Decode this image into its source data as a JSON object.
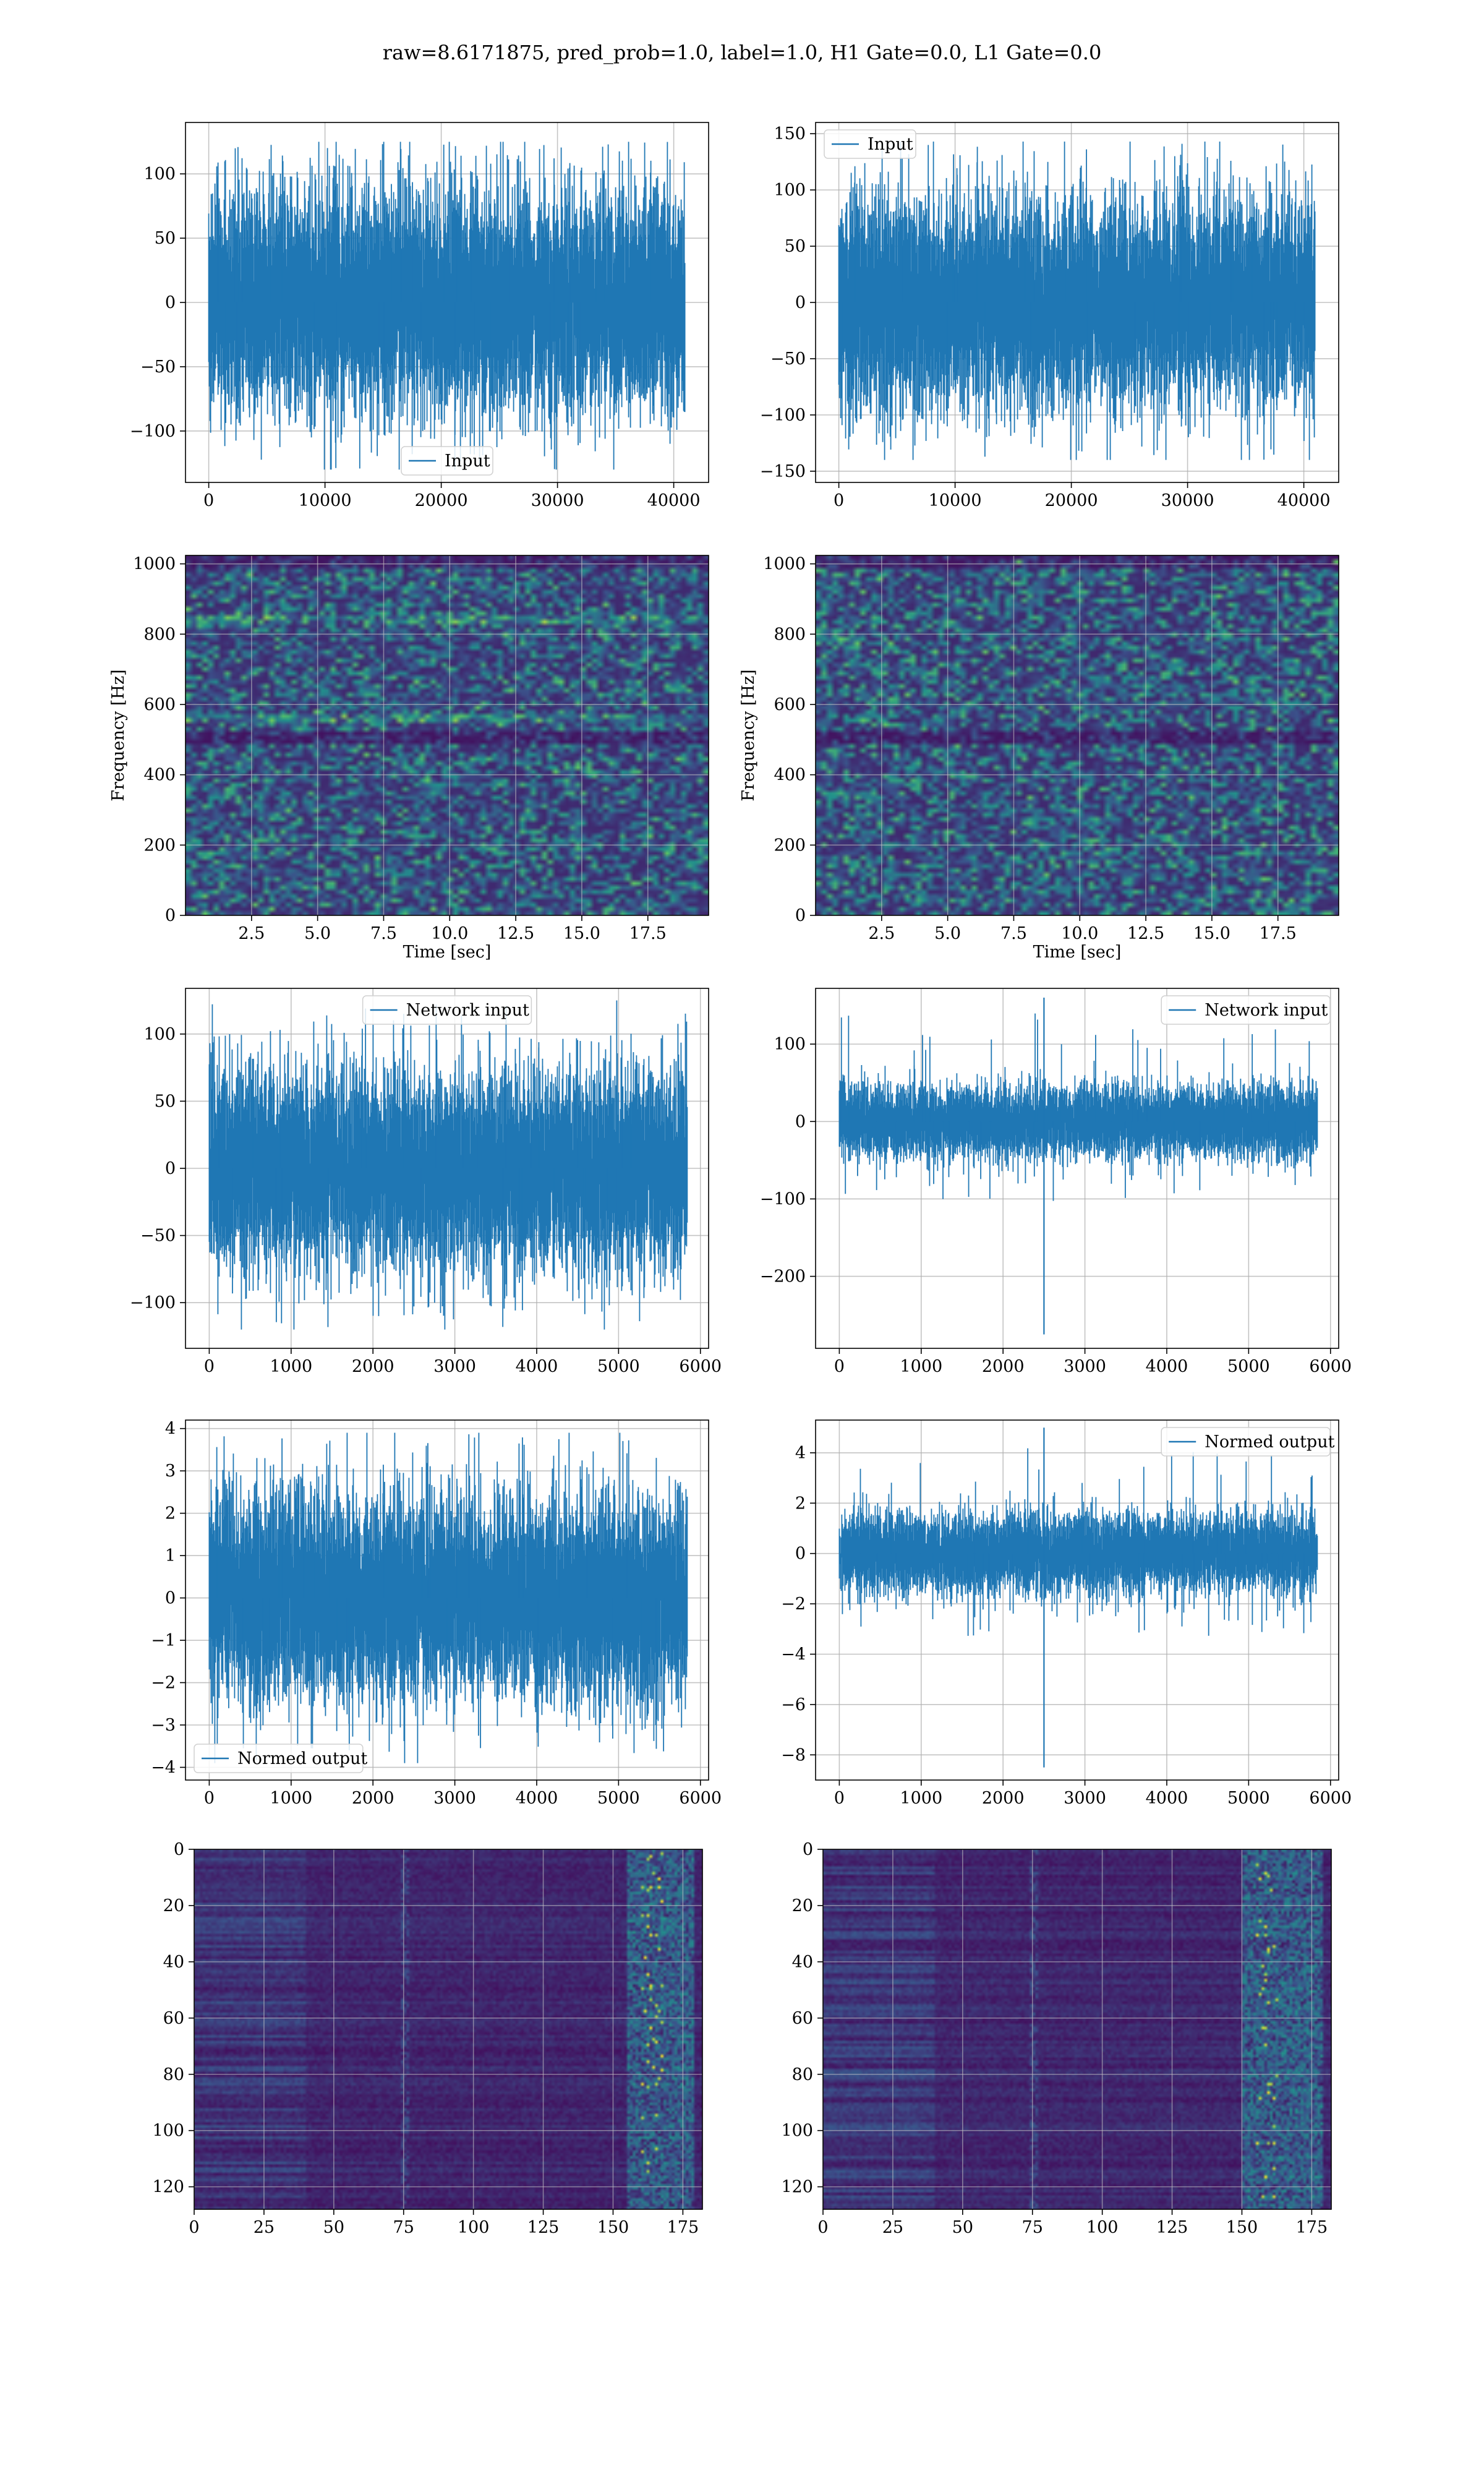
{
  "figure": {
    "title": "raw=8.6171875, pred_prob=1.0, label=1.0, H1 Gate=0.0, L1 Gate=0.0"
  },
  "colors": {
    "line": "#1f77b4",
    "grid": "#b0b0b0",
    "viridis_low": "#440154",
    "viridis_mid": "#21918c",
    "viridis_high": "#fde725"
  },
  "chart_data": [
    {
      "id": "h1-input",
      "type": "line",
      "title": "",
      "xlabel": "",
      "ylabel": "",
      "xlim": [
        -2000,
        43000
      ],
      "ylim": [
        -140,
        140
      ],
      "xticks": [
        0,
        10000,
        20000,
        30000,
        40000
      ],
      "yticks": [
        -100,
        -50,
        0,
        50,
        100
      ],
      "grid": true,
      "legend": {
        "location": "lower center",
        "entries": [
          "Input"
        ]
      },
      "series": [
        {
          "name": "Input",
          "x_range": [
            0,
            40960
          ],
          "n_points": 40960,
          "amplitude_min": -130,
          "amplitude_max": 125,
          "envelope_1sigma": [
            -65,
            65
          ]
        }
      ]
    },
    {
      "id": "l1-input",
      "type": "line",
      "title": "",
      "xlabel": "",
      "ylabel": "",
      "xlim": [
        -2000,
        43000
      ],
      "ylim": [
        -160,
        160
      ],
      "xticks": [
        0,
        10000,
        20000,
        30000,
        40000
      ],
      "yticks": [
        -150,
        -100,
        -50,
        0,
        50,
        100,
        150
      ],
      "grid": true,
      "legend": {
        "location": "upper left",
        "entries": [
          "Input"
        ]
      },
      "series": [
        {
          "name": "Input",
          "x_range": [
            0,
            40960
          ],
          "n_points": 40960,
          "amplitude_min": -140,
          "amplitude_max": 143,
          "envelope_1sigma": [
            -70,
            70
          ]
        }
      ]
    },
    {
      "id": "h1-spectrogram",
      "type": "heatmap",
      "title": "",
      "xlabel": "Time [sec]",
      "ylabel": "Frequency [Hz]",
      "xlim": [
        0,
        19.8
      ],
      "ylim": [
        0,
        1024
      ],
      "xticks": [
        2.5,
        5.0,
        7.5,
        10.0,
        12.5,
        15.0,
        17.5
      ],
      "yticks": [
        0,
        200,
        400,
        600,
        800,
        1000
      ],
      "grid": true,
      "colormap": "viridis",
      "bright_lines_hz": [
        560,
        840
      ],
      "dark_bands_hz": [
        505,
        1010
      ]
    },
    {
      "id": "l1-spectrogram",
      "type": "heatmap",
      "title": "",
      "xlabel": "Time [sec]",
      "ylabel": "Frequency [Hz]",
      "xlim": [
        0,
        19.8
      ],
      "ylim": [
        0,
        1024
      ],
      "xticks": [
        2.5,
        5.0,
        7.5,
        10.0,
        12.5,
        15.0,
        17.5
      ],
      "yticks": [
        0,
        200,
        400,
        600,
        800,
        1000
      ],
      "grid": true,
      "colormap": "viridis",
      "bright_lines_hz": [],
      "dark_bands_hz": [
        505,
        1010
      ]
    },
    {
      "id": "h1-network-input",
      "type": "line",
      "title": "",
      "xlabel": "",
      "ylabel": "",
      "xlim": [
        -290,
        6100
      ],
      "ylim": [
        -134,
        134
      ],
      "xticks": [
        0,
        1000,
        2000,
        3000,
        4000,
        5000,
        6000
      ],
      "yticks": [
        -100,
        -50,
        0,
        50,
        100
      ],
      "grid": true,
      "legend": {
        "location": "upper center",
        "entries": [
          "Network input"
        ]
      },
      "series": [
        {
          "name": "Network input",
          "x_range": [
            0,
            5840
          ],
          "n_points": 5840,
          "amplitude_min": -120,
          "amplitude_max": 125,
          "envelope_1sigma": [
            -55,
            55
          ]
        }
      ]
    },
    {
      "id": "l1-network-input",
      "type": "line",
      "title": "",
      "xlabel": "",
      "ylabel": "",
      "xlim": [
        -290,
        6100
      ],
      "ylim": [
        -293,
        172
      ],
      "xticks": [
        0,
        1000,
        2000,
        3000,
        4000,
        5000,
        6000
      ],
      "yticks": [
        -200,
        -100,
        0,
        100
      ],
      "grid": true,
      "legend": {
        "location": "upper right",
        "entries": [
          "Network input"
        ]
      },
      "series": [
        {
          "name": "Network input",
          "x_range": [
            0,
            5840
          ],
          "n_points": 5840,
          "amplitude_min": -105,
          "amplitude_max": 140,
          "envelope_1sigma": [
            -35,
            35
          ],
          "spikes": [
            {
              "x": 2500,
              "y": 160
            },
            {
              "x": 2500,
              "y": -275
            }
          ]
        }
      ]
    },
    {
      "id": "h1-normed-output",
      "type": "line",
      "title": "",
      "xlabel": "",
      "ylabel": "",
      "xlim": [
        -290,
        6100
      ],
      "ylim": [
        -4.3,
        4.2
      ],
      "xticks": [
        0,
        1000,
        2000,
        3000,
        4000,
        5000,
        6000
      ],
      "yticks": [
        -4,
        -3,
        -2,
        -1,
        0,
        1,
        2,
        3,
        4
      ],
      "grid": true,
      "legend": {
        "location": "lower left",
        "entries": [
          "Normed output"
        ]
      },
      "series": [
        {
          "name": "Normed output",
          "x_range": [
            0,
            5840
          ],
          "n_points": 5840,
          "amplitude_min": -3.9,
          "amplitude_max": 3.9,
          "envelope_1sigma": [
            -1.8,
            1.8
          ]
        }
      ]
    },
    {
      "id": "l1-normed-output",
      "type": "line",
      "title": "",
      "xlabel": "",
      "ylabel": "",
      "xlim": [
        -290,
        6100
      ],
      "ylim": [
        -9.0,
        5.3
      ],
      "xticks": [
        0,
        1000,
        2000,
        3000,
        4000,
        5000,
        6000
      ],
      "yticks": [
        -8,
        -6,
        -4,
        -2,
        0,
        2,
        4
      ],
      "grid": true,
      "legend": {
        "location": "upper right",
        "entries": [
          "Normed output"
        ]
      },
      "series": [
        {
          "name": "Normed output",
          "x_range": [
            0,
            5840
          ],
          "n_points": 5840,
          "amplitude_min": -3.3,
          "amplitude_max": 4.3,
          "envelope_1sigma": [
            -1.2,
            1.2
          ],
          "spikes": [
            {
              "x": 2500,
              "y": 5.0
            },
            {
              "x": 2500,
              "y": -8.5
            }
          ]
        }
      ]
    },
    {
      "id": "h1-feature-map",
      "type": "heatmap",
      "title": "",
      "xlabel": "",
      "ylabel": "",
      "xlim": [
        0,
        182
      ],
      "ylim": [
        128,
        0
      ],
      "xticks": [
        0,
        25,
        50,
        75,
        100,
        125,
        150,
        175
      ],
      "yticks": [
        0,
        20,
        40,
        60,
        80,
        100,
        120
      ],
      "grid": true,
      "colormap": "viridis",
      "bright_region_x": [
        155,
        178
      ]
    },
    {
      "id": "l1-feature-map",
      "type": "heatmap",
      "title": "",
      "xlabel": "",
      "ylabel": "",
      "xlim": [
        0,
        182
      ],
      "ylim": [
        128,
        0
      ],
      "xticks": [
        0,
        25,
        50,
        75,
        100,
        125,
        150,
        175
      ],
      "yticks": [
        0,
        20,
        40,
        60,
        80,
        100,
        120
      ],
      "grid": true,
      "colormap": "viridis",
      "bright_region_x": [
        150,
        178
      ]
    }
  ]
}
